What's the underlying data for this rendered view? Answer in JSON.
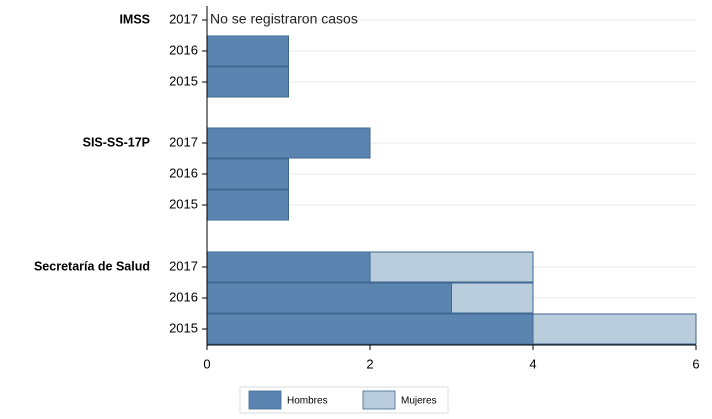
{
  "chart_data": {
    "type": "bar",
    "orientation": "horizontal",
    "stacked": true,
    "groups": [
      {
        "name": "IMSS",
        "categories": [
          "2017",
          "2016",
          "2015"
        ]
      },
      {
        "name": "SIS-SS-17P",
        "categories": [
          "2017",
          "2016",
          "2015"
        ]
      },
      {
        "name": "Secretaría de Salud",
        "categories": [
          "2017",
          "2016",
          "2015"
        ]
      }
    ],
    "series": [
      {
        "name": "Hombres",
        "color": "#5b85b0",
        "values": [
          [
            0,
            1,
            1
          ],
          [
            2,
            1,
            1
          ],
          [
            2,
            3,
            4
          ]
        ]
      },
      {
        "name": "Mujeres",
        "color": "#b9cddc",
        "values": [
          [
            0,
            0,
            0
          ],
          [
            0,
            0,
            0
          ],
          [
            2,
            1,
            2
          ]
        ]
      }
    ],
    "annotation": "No se  registraron casos",
    "xlim": [
      0,
      6
    ],
    "xticks": [
      0,
      2,
      4,
      6
    ],
    "grid": true,
    "legend": "bottom"
  }
}
